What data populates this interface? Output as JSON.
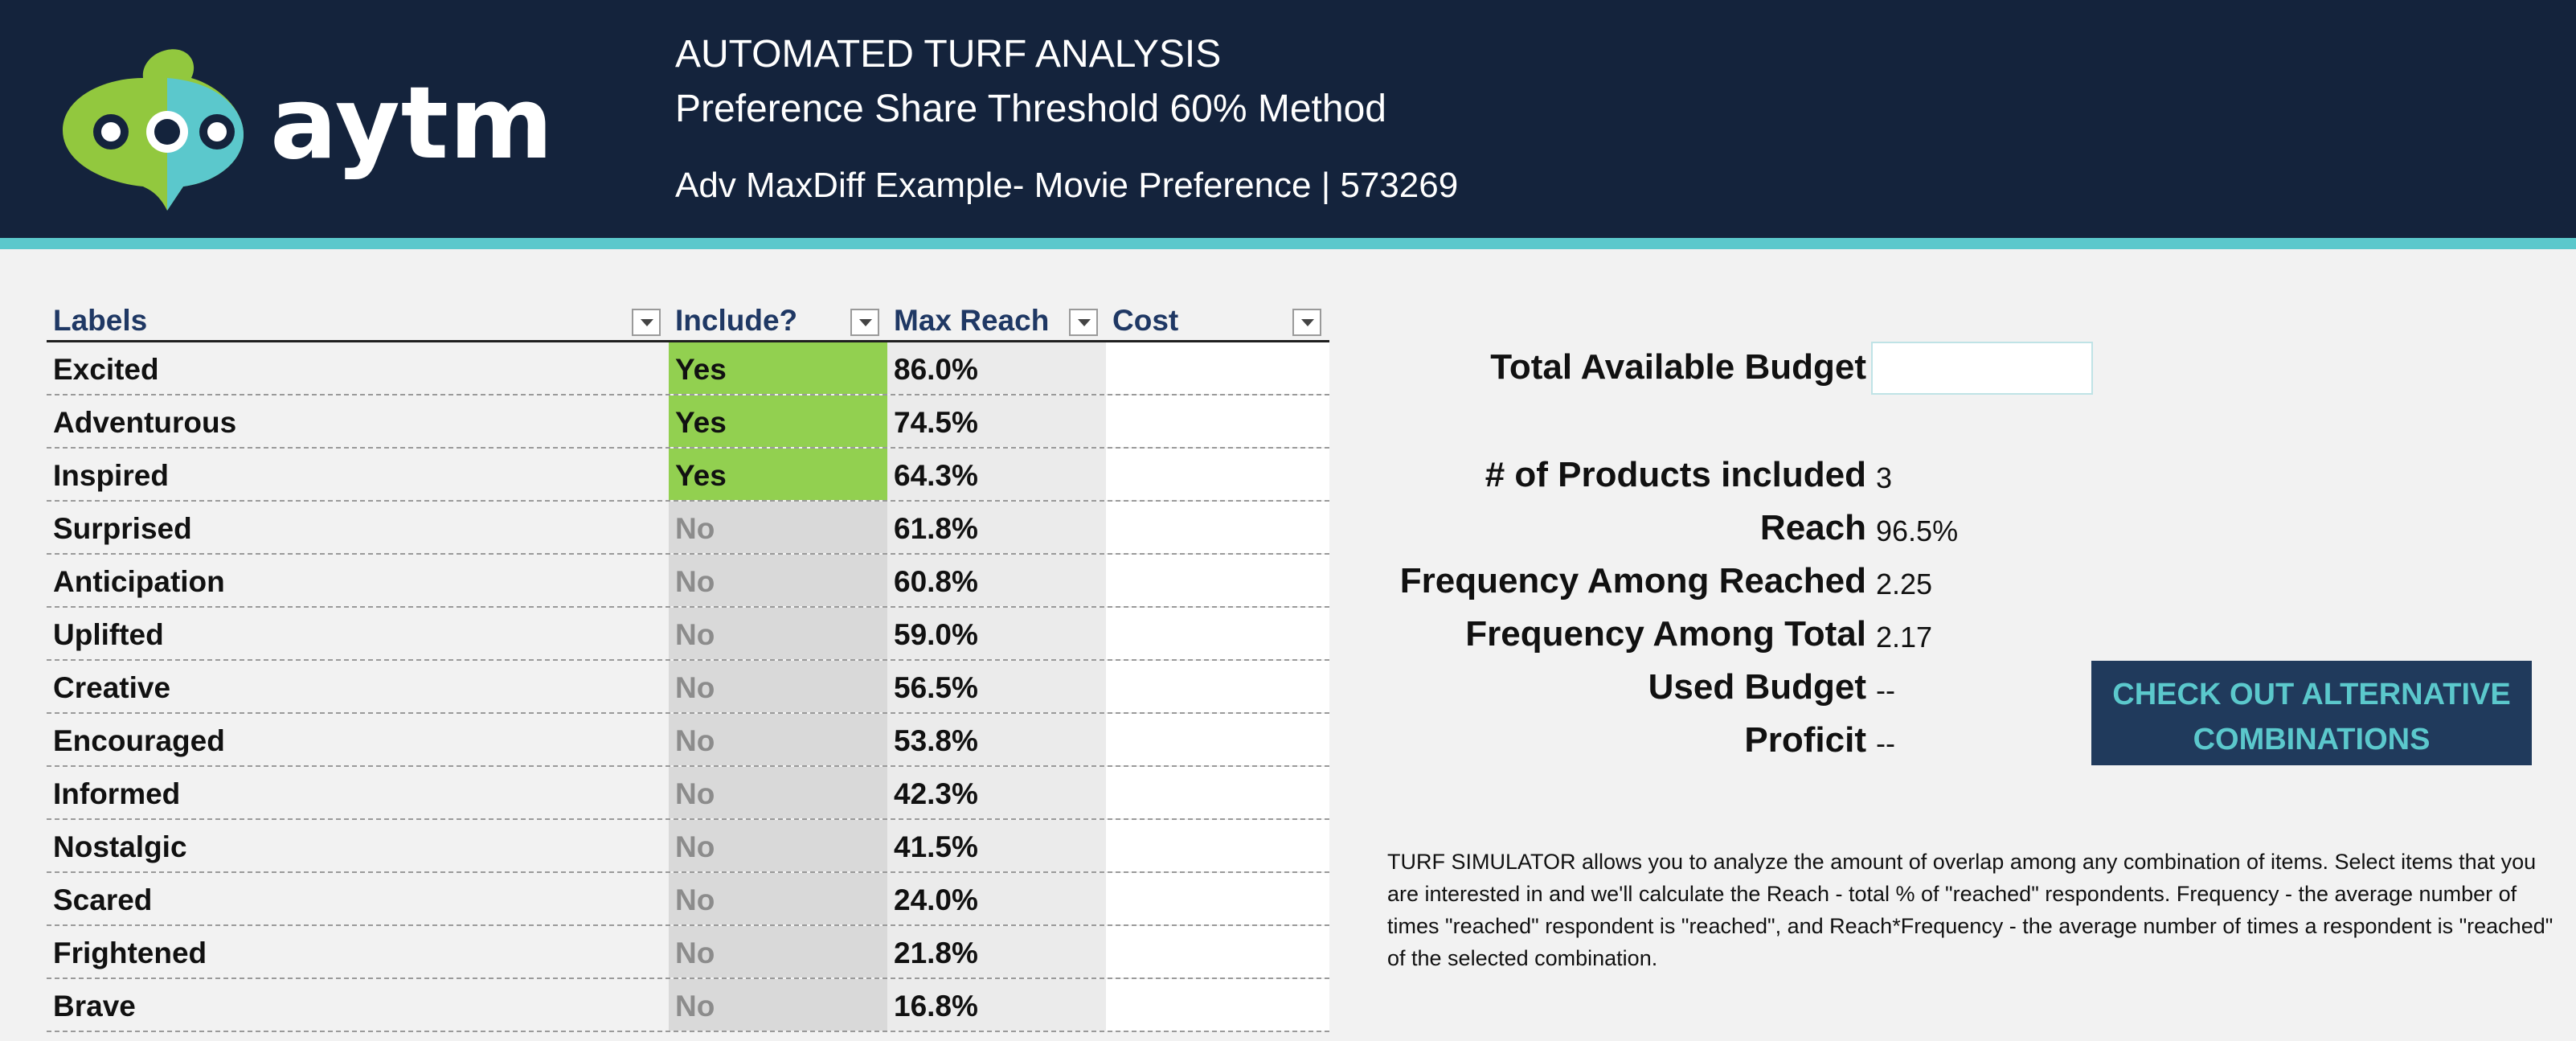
{
  "header": {
    "brand": "aytm",
    "title_line1": "AUTOMATED TURF ANALYSIS",
    "title_line2": "Preference Share Threshold 60% Method",
    "title_line3": "Adv MaxDiff Example- Movie Preference | 573269",
    "colors": {
      "bg": "#14233c",
      "accent": "#5bc8cc",
      "logo_green": "#92c83e"
    }
  },
  "table": {
    "headers": {
      "labels": "Labels",
      "include": "Include?",
      "max_reach": "Max Reach",
      "cost": "Cost"
    },
    "rows": [
      {
        "label": "Excited",
        "include": "Yes",
        "max_reach": "86.0%",
        "cost": ""
      },
      {
        "label": "Adventurous",
        "include": "Yes",
        "max_reach": "74.5%",
        "cost": ""
      },
      {
        "label": "Inspired",
        "include": "Yes",
        "max_reach": "64.3%",
        "cost": ""
      },
      {
        "label": "Surprised",
        "include": "No",
        "max_reach": "61.8%",
        "cost": ""
      },
      {
        "label": "Anticipation",
        "include": "No",
        "max_reach": "60.8%",
        "cost": ""
      },
      {
        "label": "Uplifted",
        "include": "No",
        "max_reach": "59.0%",
        "cost": ""
      },
      {
        "label": "Creative",
        "include": "No",
        "max_reach": "56.5%",
        "cost": ""
      },
      {
        "label": "Encouraged",
        "include": "No",
        "max_reach": "53.8%",
        "cost": ""
      },
      {
        "label": "Informed",
        "include": "No",
        "max_reach": "42.3%",
        "cost": ""
      },
      {
        "label": "Nostalgic",
        "include": "No",
        "max_reach": "41.5%",
        "cost": ""
      },
      {
        "label": "Scared",
        "include": "No",
        "max_reach": "24.0%",
        "cost": ""
      },
      {
        "label": "Frightened",
        "include": "No",
        "max_reach": "21.8%",
        "cost": ""
      },
      {
        "label": "Brave",
        "include": "No",
        "max_reach": "16.8%",
        "cost": ""
      }
    ],
    "colors": {
      "yes_bg": "#92d050",
      "no_bg": "#d9d9d9"
    }
  },
  "panel": {
    "budget_label": "Total Available Budget",
    "budget_value": "",
    "stats": [
      {
        "label": "# of Products included",
        "value": "3"
      },
      {
        "label": "Reach",
        "value": "96.5%"
      },
      {
        "label": "Frequency Among Reached",
        "value": "2.25"
      },
      {
        "label": "Frequency Among Total",
        "value": "2.17"
      },
      {
        "label": "Used Budget",
        "value": "--"
      },
      {
        "label": "Proficit",
        "value": "--"
      }
    ],
    "cta_line1": "CHECK OUT ALTERNATIVE",
    "cta_line2": "COMBINATIONS",
    "description": "TURF SIMULATOR allows you to analyze the amount of overlap among any combination of items. Select items that you are interested in and we'll calculate the Reach - total % of \"reached\" respondents. Frequency - the average number of times \"reached\" respondent is \"reached\", and  Reach*Frequency - the average number of times a respondent is \"reached\" of the selected combination."
  }
}
